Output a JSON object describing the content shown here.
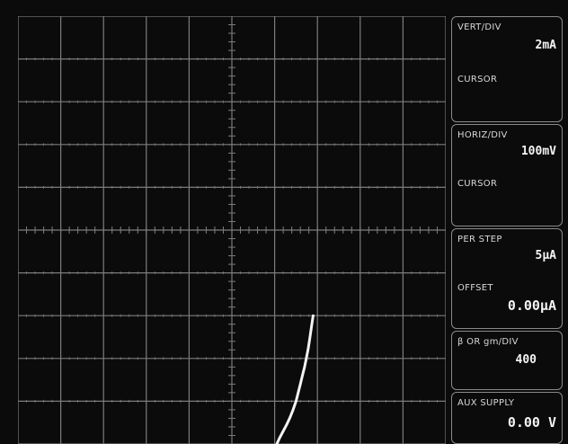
{
  "display": {
    "grid_divisions": {
      "horizontal": 10,
      "vertical": 10
    },
    "colors": {
      "background": "#0b0b0b",
      "grid": "#7c7c7c",
      "trace": "#f4f4f4",
      "text": "#e2e2e2"
    }
  },
  "trace": {
    "description": "characteristic curve",
    "points_div": [
      [
        6.05,
        0.0
      ],
      [
        6.12,
        0.15
      ],
      [
        6.2,
        0.3
      ],
      [
        6.28,
        0.45
      ],
      [
        6.36,
        0.62
      ],
      [
        6.43,
        0.8
      ],
      [
        6.5,
        1.0
      ],
      [
        6.55,
        1.2
      ],
      [
        6.6,
        1.4
      ],
      [
        6.65,
        1.6
      ],
      [
        6.7,
        1.8
      ],
      [
        6.74,
        2.0
      ],
      [
        6.78,
        2.2
      ],
      [
        6.81,
        2.4
      ],
      [
        6.84,
        2.6
      ],
      [
        6.87,
        2.8
      ],
      [
        6.9,
        3.0
      ]
    ]
  },
  "panel": {
    "vert": {
      "label": "VERT/DIV",
      "value": "2mA",
      "cursor_label": "CURSOR"
    },
    "horiz": {
      "label": "HORIZ/DIV",
      "value": "100mV",
      "cursor_label": "CURSOR"
    },
    "step": {
      "label": "PER STEP",
      "value": "5μA",
      "offset_label": "OFFSET",
      "offset_value": "0.00μA"
    },
    "beta": {
      "label": "β OR gm/DIV",
      "value": "400"
    },
    "aux": {
      "label": "AUX SUPPLY",
      "value": "0.00 V"
    }
  }
}
